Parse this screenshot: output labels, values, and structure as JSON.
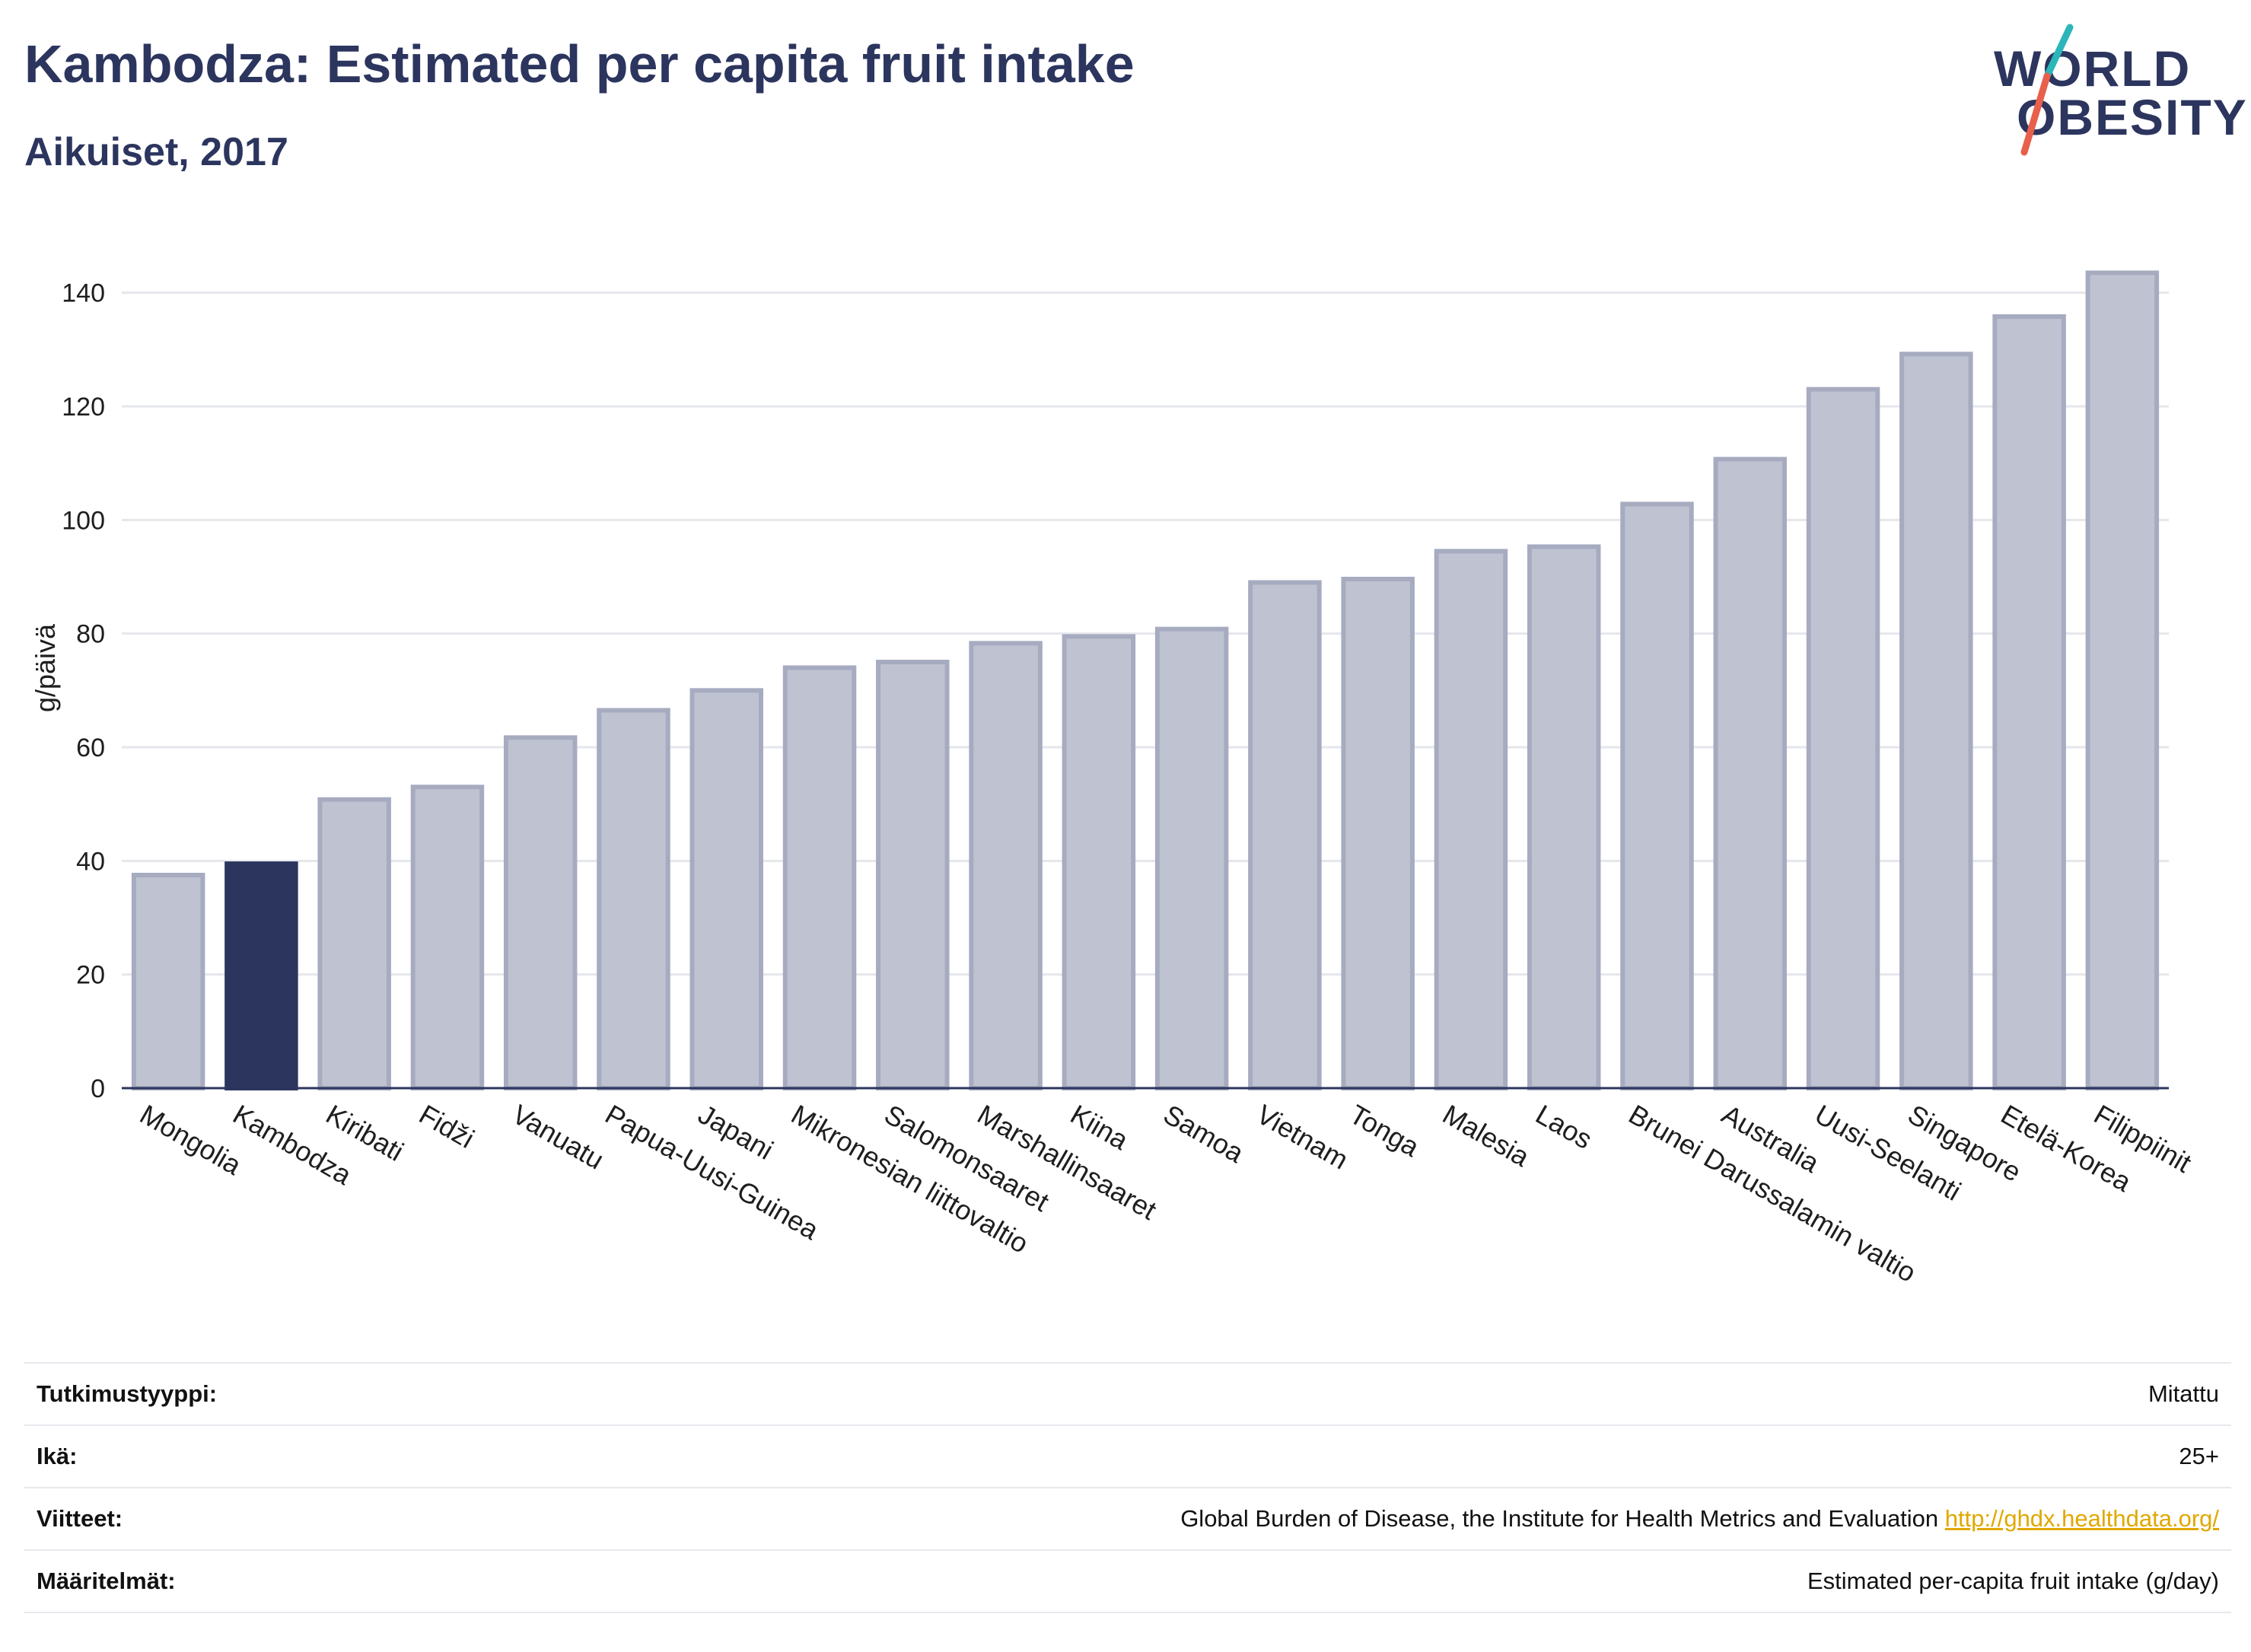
{
  "header": {
    "title": "Kambodza: Estimated per capita fruit intake",
    "subtitle": "Aikuiset, 2017"
  },
  "logo": {
    "line1": "WORLD",
    "line2": "OBESITY",
    "colors": {
      "text": "#2c355e",
      "slash_teal": "#2bb6b9",
      "slash_coral": "#e8604c"
    }
  },
  "chart_data": {
    "type": "bar",
    "categories": [
      "Mongolia",
      "Kambodza",
      "Kiribati",
      "Fidži",
      "Vanuatu",
      "Papua-Uusi-Guinea",
      "Japani",
      "Mikronesian liittovaltio",
      "Salomonsaaret",
      "Marshallinsaaret",
      "Kiina",
      "Samoa",
      "Vietnam",
      "Tonga",
      "Malesia",
      "Laos",
      "Brunei Darussalamin valtio",
      "Australia",
      "Uusi-Seelanti",
      "Singapore",
      "Etelä-Korea",
      "Filippiinit"
    ],
    "values": [
      37.5,
      39.5,
      50.8,
      53,
      61.7,
      66.5,
      70,
      74,
      75,
      78.3,
      79.5,
      80.8,
      89,
      89.6,
      94.5,
      95.3,
      102.8,
      110.7,
      123,
      129.2,
      135.8,
      143.5
    ],
    "highlight": "Kambodza",
    "ylabel": "g/päivä",
    "xlabel": "",
    "ylim": [
      0,
      150
    ],
    "yticks": [
      0,
      20,
      40,
      60,
      80,
      100,
      120,
      140
    ],
    "grid": true,
    "colors": {
      "bar": "#bfc3d1",
      "bar_border": "#a6abc0",
      "highlight": "#2c355e",
      "grid": "#e6e7ec",
      "axis": "#2c355e"
    }
  },
  "info": [
    {
      "label": "Tutkimustyyppi:",
      "value": "Mitattu"
    },
    {
      "label": "Ikä:",
      "value": "25+"
    },
    {
      "label": "Viitteet:",
      "value": "Global Burden of Disease, the Institute for Health Metrics and Evaluation ",
      "link": "http://ghdx.healthdata.org/"
    },
    {
      "label": "Määritelmät:",
      "value": "Estimated per-capita fruit intake (g/day)"
    }
  ]
}
